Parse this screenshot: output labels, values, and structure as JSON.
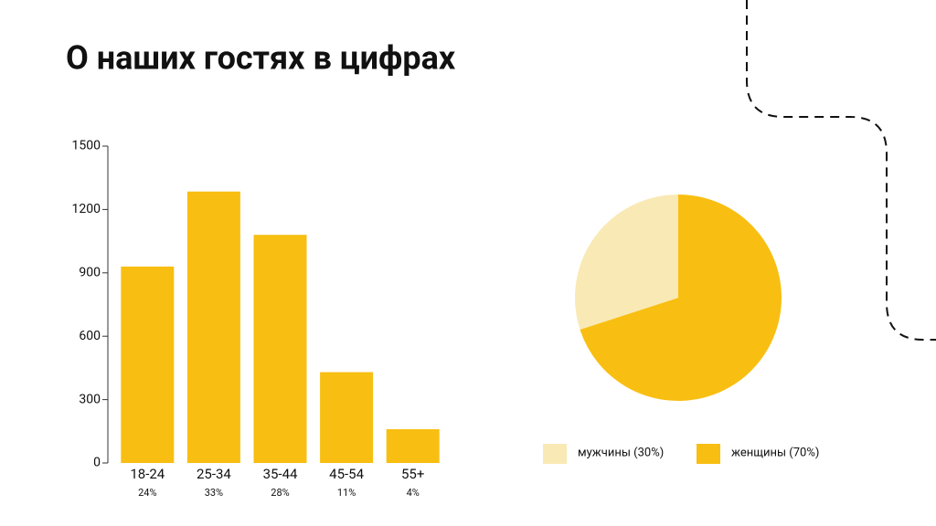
{
  "title": "О наших гостях в цифрах",
  "chart_data": [
    {
      "type": "bar",
      "categories": [
        "18-24",
        "25-34",
        "35-44",
        "45-54",
        "55+"
      ],
      "category_notes": [
        "24%",
        "33%",
        "28%",
        "11%",
        "4%"
      ],
      "values": [
        930,
        1285,
        1080,
        430,
        160
      ],
      "color": "#f8bf12",
      "ylim": [
        0,
        1500
      ],
      "yticks": [
        0,
        300,
        600,
        900,
        1200,
        1500
      ]
    },
    {
      "type": "pie",
      "categories": [
        "мужчины (30%)",
        "женщины (70%)"
      ],
      "values": [
        30,
        70
      ],
      "colors": [
        "#f9e9b5",
        "#f8bf12"
      ]
    }
  ]
}
